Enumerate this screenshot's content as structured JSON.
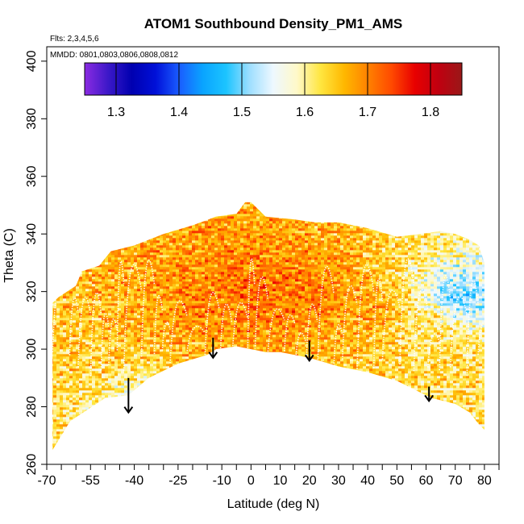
{
  "chart_data": {
    "type": "heatmap",
    "title": "ATOM1 Southbound Density_PM1_AMS",
    "flights_label": "Flts: 2,3,4,5,6",
    "dates_label": "MMDD: 0801,0803,0806,0808,0812",
    "xlabel": "Latitude (deg N)",
    "ylabel": "Theta (C)",
    "xlim": [
      -70,
      85
    ],
    "ylim": [
      260,
      405
    ],
    "x_ticks": [
      -70,
      -55,
      -40,
      -25,
      -10,
      0,
      10,
      20,
      30,
      40,
      50,
      60,
      70,
      80
    ],
    "x_minor_ticks": [
      -65,
      -60,
      -50,
      -45,
      -35,
      -30,
      -20,
      -15,
      -5,
      5,
      15,
      25,
      35,
      45,
      55,
      65,
      75,
      85
    ],
    "y_ticks": [
      260,
      280,
      300,
      320,
      340,
      360,
      380,
      400
    ],
    "colorbar": {
      "min": 1.25,
      "max": 1.85,
      "ticks": [
        1.3,
        1.4,
        1.5,
        1.6,
        1.7,
        1.8
      ],
      "colors": [
        "#8b2be2",
        "#3b18c8",
        "#0000b0",
        "#0010d8",
        "#1a5cff",
        "#0aa4ff",
        "#1cc4ff",
        "#9fdfff",
        "#eef8ff",
        "#fff9c8",
        "#ffe640",
        "#ffb800",
        "#ff8200",
        "#ff4a00",
        "#e80000",
        "#c00010",
        "#9a1818"
      ]
    },
    "envelope_lower": [
      [
        -68,
        265
      ],
      [
        -62,
        275
      ],
      [
        -50,
        283
      ],
      [
        -42,
        284
      ],
      [
        -35,
        290
      ],
      [
        -25,
        295
      ],
      [
        -15,
        298
      ],
      [
        -12,
        300
      ],
      [
        -5,
        301
      ],
      [
        0,
        300
      ],
      [
        5,
        299
      ],
      [
        10,
        299
      ],
      [
        15,
        298
      ],
      [
        20,
        297
      ],
      [
        30,
        294
      ],
      [
        40,
        292
      ],
      [
        50,
        289
      ],
      [
        58,
        285
      ],
      [
        62,
        283
      ],
      [
        70,
        281
      ],
      [
        75,
        278
      ],
      [
        78,
        274
      ],
      [
        80,
        272
      ]
    ],
    "envelope_upper": [
      [
        -68,
        316
      ],
      [
        -66,
        318
      ],
      [
        -60,
        322
      ],
      [
        -58,
        327
      ],
      [
        -52,
        329
      ],
      [
        -48,
        334
      ],
      [
        -40,
        336
      ],
      [
        -30,
        340
      ],
      [
        -20,
        343
      ],
      [
        -12,
        346
      ],
      [
        -5,
        347
      ],
      [
        -2,
        351
      ],
      [
        0,
        351
      ],
      [
        5,
        346
      ],
      [
        15,
        345
      ],
      [
        22,
        344
      ],
      [
        30,
        344
      ],
      [
        40,
        342
      ],
      [
        50,
        339
      ],
      [
        58,
        340
      ],
      [
        65,
        341
      ],
      [
        70,
        340
      ],
      [
        75,
        338
      ],
      [
        78,
        336
      ],
      [
        80,
        330
      ],
      [
        80,
        300
      ]
    ],
    "density_field": [
      {
        "lat": -60,
        "theta": 300,
        "density": 1.64
      },
      {
        "lat": -40,
        "theta": 310,
        "density": 1.66
      },
      {
        "lat": -20,
        "theta": 315,
        "density": 1.7
      },
      {
        "lat": 0,
        "theta": 320,
        "density": 1.72
      },
      {
        "lat": 20,
        "theta": 318,
        "density": 1.71
      },
      {
        "lat": 40,
        "theta": 315,
        "density": 1.68
      },
      {
        "lat": 60,
        "theta": 310,
        "density": 1.62
      },
      {
        "lat": 70,
        "theta": 318,
        "density": 1.48
      },
      {
        "lat": -40,
        "theta": 285,
        "density": 1.58
      },
      {
        "lat": 65,
        "theta": 295,
        "density": 1.63
      }
    ],
    "arrows": [
      {
        "lat": -42,
        "theta_top": 290,
        "theta_tip": 278
      },
      {
        "lat": -13,
        "theta_top": 304,
        "theta_tip": 297
      },
      {
        "lat": 20,
        "theta_top": 303,
        "theta_tip": 296
      },
      {
        "lat": 61,
        "theta_top": 287,
        "theta_tip": 282
      }
    ]
  }
}
